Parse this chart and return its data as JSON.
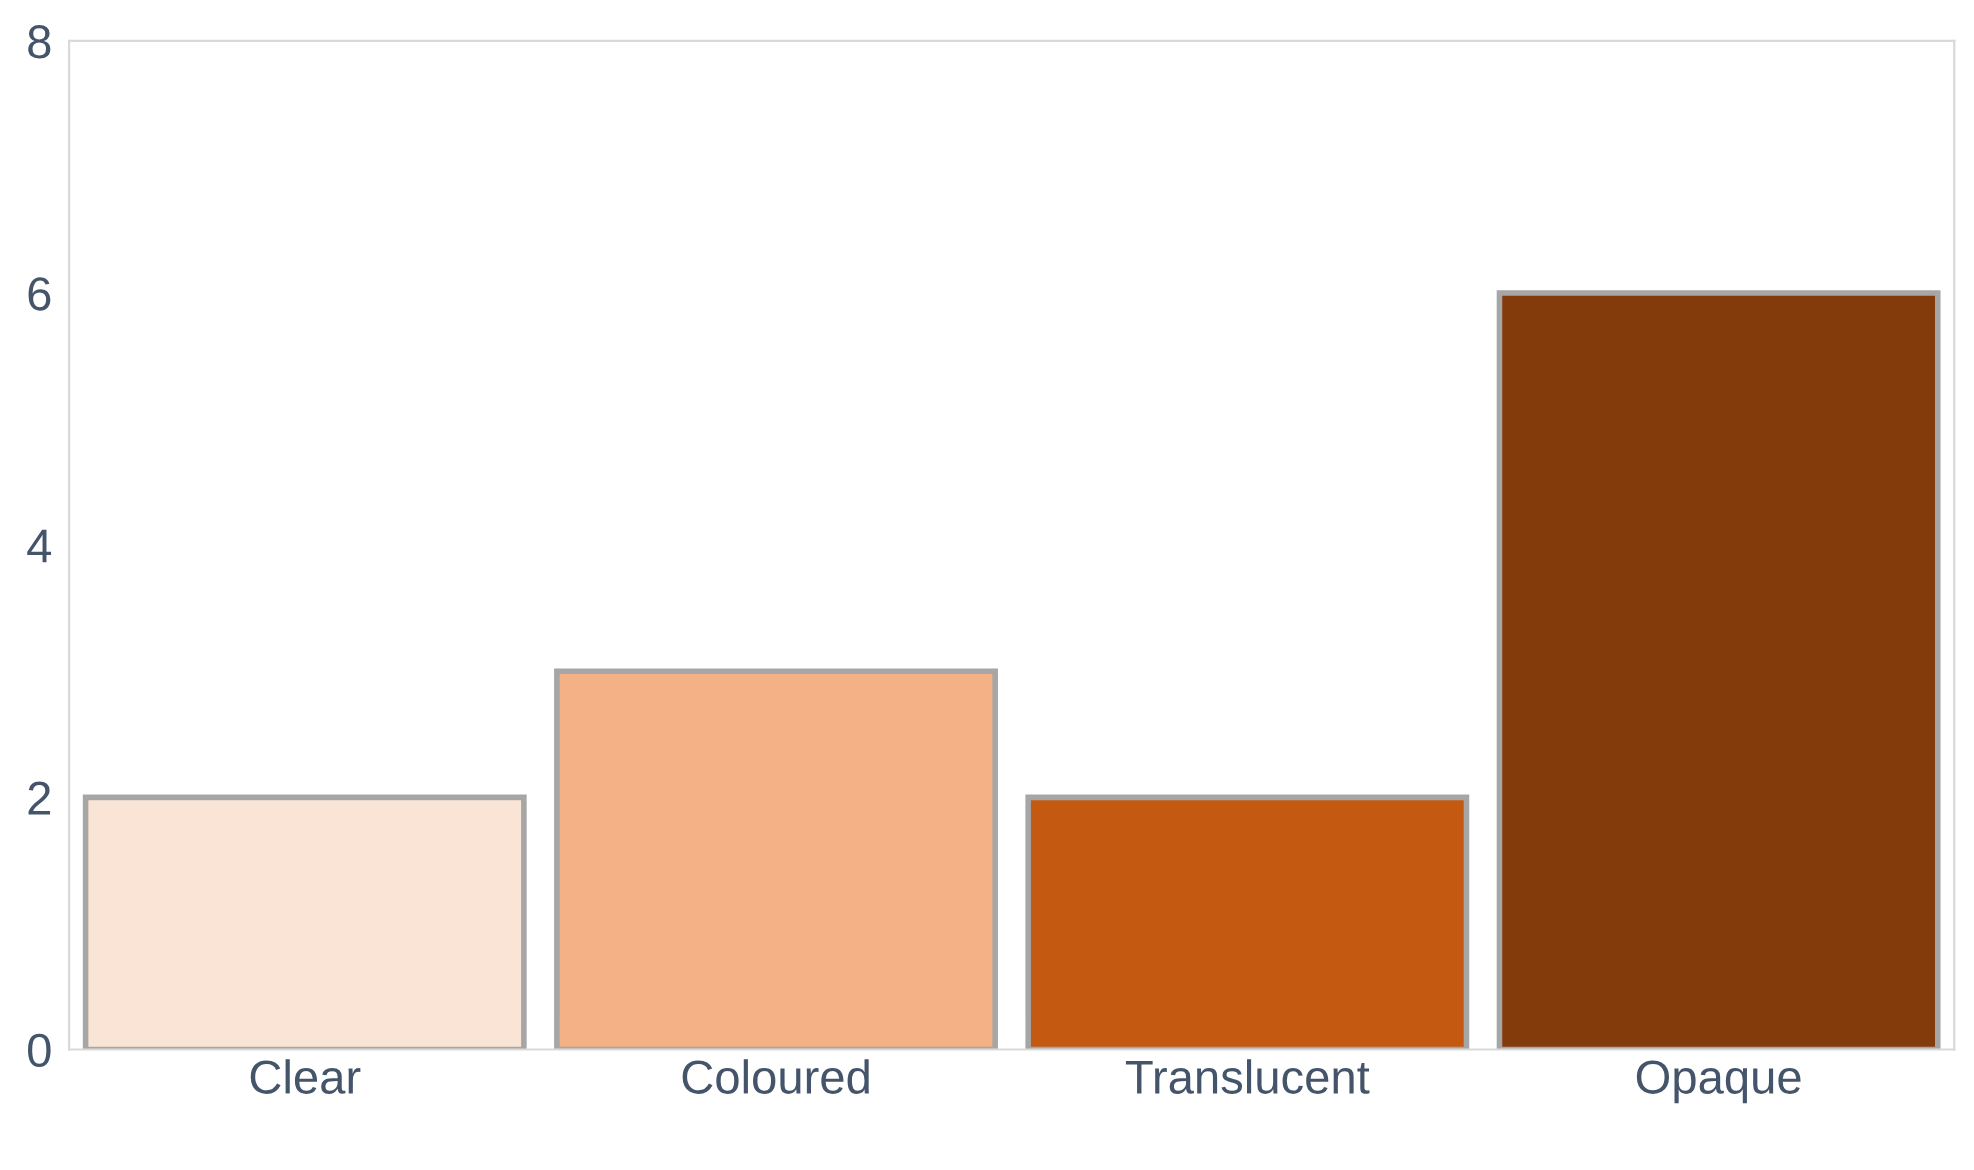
{
  "chart_data": {
    "type": "bar",
    "categories": [
      "Clear",
      "Coloured",
      "Translucent",
      "Opaque"
    ],
    "values": [
      2,
      3,
      2,
      6
    ],
    "colors": [
      "#fae4d6",
      "#f3b185",
      "#c45a11",
      "#843b0c"
    ],
    "ylim": [
      0,
      8
    ],
    "yticks": [
      0,
      2,
      4,
      6,
      8
    ],
    "grid": false,
    "legend": false
  }
}
